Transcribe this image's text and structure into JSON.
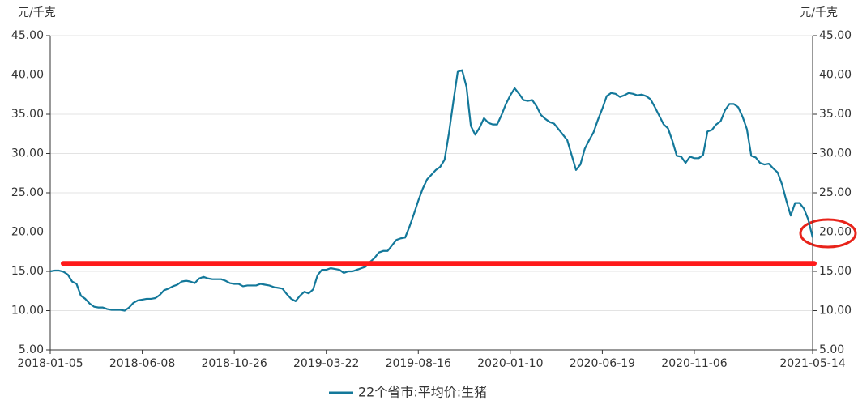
{
  "chart_data": {
    "type": "line",
    "ylabel": "元/千克",
    "y2label": "元/千克",
    "categories": [
      "2018-01-05",
      null,
      null,
      null,
      null,
      null,
      null,
      null,
      null,
      null,
      null,
      null,
      null,
      null,
      null,
      null,
      null,
      null,
      null,
      null,
      null,
      "2018-06-08",
      null,
      null,
      null,
      null,
      null,
      null,
      null,
      null,
      null,
      null,
      null,
      null,
      null,
      null,
      null,
      null,
      null,
      null,
      null,
      null,
      "2018-10-26",
      null,
      null,
      null,
      null,
      null,
      null,
      null,
      null,
      null,
      null,
      null,
      null,
      null,
      null,
      null,
      null,
      null,
      null,
      null,
      null,
      "2019-03-22",
      null,
      null,
      null,
      null,
      null,
      null,
      null,
      null,
      null,
      null,
      null,
      null,
      null,
      null,
      null,
      null,
      null,
      null,
      null,
      null,
      "2019-08-16",
      null,
      null,
      null,
      null,
      null,
      null,
      null,
      null,
      null,
      null,
      null,
      null,
      null,
      null,
      null,
      null,
      null,
      null,
      null,
      null,
      "2020-01-10",
      null,
      null,
      null,
      null,
      null,
      null,
      null,
      null,
      null,
      null,
      null,
      null,
      null,
      null,
      null,
      null,
      null,
      null,
      null,
      null,
      "2020-06-19",
      null,
      null,
      null,
      null,
      null,
      null,
      null,
      null,
      null,
      null,
      null,
      null,
      null,
      null,
      null,
      null,
      null,
      null,
      null,
      null,
      "2020-11-06",
      null,
      null,
      null,
      null,
      null,
      null,
      null,
      null,
      null,
      null,
      null,
      null,
      null,
      null,
      null,
      null,
      null,
      null,
      null,
      null,
      null,
      null,
      null,
      null,
      null,
      null,
      "2021-05-14"
    ],
    "series": [
      {
        "name": "22个省市:平均价:生猪",
        "color": "#13789a",
        "values": [
          15.0,
          15.1,
          15.1,
          14.95,
          14.6,
          13.7,
          13.4,
          11.9,
          11.5,
          10.9,
          10.5,
          10.4,
          10.4,
          10.2,
          10.1,
          10.1,
          10.1,
          10.0,
          10.4,
          11.0,
          11.3,
          11.4,
          11.5,
          11.5,
          11.6,
          12.0,
          12.6,
          12.8,
          13.1,
          13.3,
          13.7,
          13.8,
          13.7,
          13.5,
          14.1,
          14.3,
          14.1,
          14.0,
          14.0,
          14.0,
          13.8,
          13.5,
          13.4,
          13.4,
          13.1,
          13.2,
          13.2,
          13.2,
          13.4,
          13.3,
          13.2,
          13.0,
          12.9,
          12.8,
          12.1,
          11.5,
          11.2,
          11.9,
          12.4,
          12.2,
          12.7,
          14.5,
          15.2,
          15.2,
          15.4,
          15.3,
          15.2,
          14.8,
          15.0,
          15.0,
          15.2,
          15.4,
          15.6,
          16.2,
          16.7,
          17.4,
          17.6,
          17.6,
          18.3,
          19.0,
          19.2,
          19.3,
          20.7,
          22.3,
          24.0,
          25.5,
          26.7,
          27.3,
          27.9,
          28.3,
          29.2,
          32.6,
          36.6,
          40.4,
          40.6,
          38.5,
          33.5,
          32.4,
          33.3,
          34.5,
          33.9,
          33.7,
          33.7,
          34.9,
          36.3,
          37.4,
          38.3,
          37.6,
          36.8,
          36.7,
          36.8,
          36.0,
          34.9,
          34.4,
          34.0,
          33.8,
          33.1,
          32.4,
          31.7,
          29.8,
          27.9,
          28.6,
          30.6,
          31.7,
          32.7,
          34.3,
          35.7,
          37.3,
          37.7,
          37.6,
          37.2,
          37.4,
          37.7,
          37.6,
          37.4,
          37.5,
          37.3,
          36.9,
          35.9,
          34.8,
          33.7,
          33.2,
          31.6,
          29.7,
          29.6,
          28.8,
          29.6,
          29.4,
          29.4,
          29.8,
          32.8,
          33.0,
          33.7,
          34.1,
          35.5,
          36.3,
          36.3,
          35.9,
          34.7,
          33.1,
          29.7,
          29.5,
          28.8,
          28.6,
          28.7,
          28.1,
          27.6,
          26.1,
          24.0,
          22.1,
          23.7,
          23.7,
          23.0,
          21.6,
          19.3
        ]
      }
    ],
    "ylim": [
      5,
      45
    ],
    "yticks": [
      {
        "value": 5,
        "label": "5.00"
      },
      {
        "value": 10,
        "label": "10.00"
      },
      {
        "value": 15,
        "label": "15.00"
      },
      {
        "value": 20,
        "label": "20.00"
      },
      {
        "value": 25,
        "label": "25.00"
      },
      {
        "value": 30,
        "label": "30.00"
      },
      {
        "value": 35,
        "label": "35.00"
      },
      {
        "value": 40,
        "label": "40.00"
      },
      {
        "value": 45,
        "label": "45.00"
      }
    ],
    "y2lim": [
      5,
      45
    ],
    "y2ticks": [
      {
        "value": 5,
        "label": "5.00"
      },
      {
        "value": 10,
        "label": "10.00"
      },
      {
        "value": 15,
        "label": "15.00"
      },
      {
        "value": 20,
        "label": "20.00"
      },
      {
        "value": 25,
        "label": "25.00"
      },
      {
        "value": 30,
        "label": "30.00"
      },
      {
        "value": 35,
        "label": "35.00"
      },
      {
        "value": 40,
        "label": "40.00"
      },
      {
        "value": 45,
        "label": "45.00"
      }
    ],
    "grid": true,
    "hline": {
      "value": 16,
      "color": "#ff1a1a"
    }
  }
}
